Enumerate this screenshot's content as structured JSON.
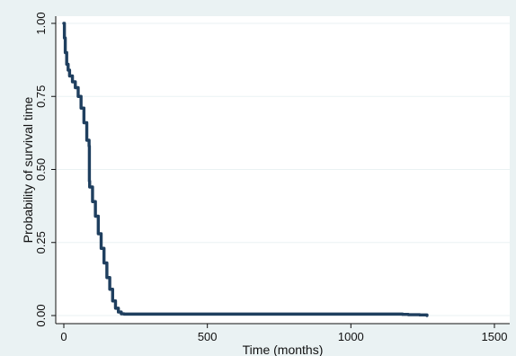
{
  "chart_data": {
    "type": "line",
    "title": "",
    "xlabel": "Time (months)",
    "ylabel": "Probability of survival time",
    "xlim": [
      0,
      1500
    ],
    "ylim": [
      0,
      1
    ],
    "x_ticks": [
      0,
      500,
      1000,
      1500
    ],
    "x_tick_labels": [
      "0",
      "500",
      "1000",
      "1500"
    ],
    "y_ticks": [
      0,
      0.25,
      0.5,
      0.75,
      1
    ],
    "y_tick_labels": [
      "0.00",
      "0.25",
      "0.50",
      "0.75",
      "1.00"
    ],
    "grid": "horizontal",
    "step": true,
    "series": [
      {
        "color": "#1f3f5f",
        "x": [
          0,
          2,
          5,
          10,
          15,
          20,
          30,
          40,
          50,
          60,
          70,
          80,
          88,
          89,
          90,
          100,
          110,
          120,
          130,
          140,
          150,
          160,
          170,
          180,
          190,
          200,
          210,
          300,
          500,
          800,
          1000,
          1150,
          1180,
          1200,
          1240,
          1265
        ],
        "y": [
          1.0,
          0.95,
          0.9,
          0.86,
          0.84,
          0.82,
          0.8,
          0.78,
          0.75,
          0.71,
          0.66,
          0.6,
          0.58,
          0.46,
          0.44,
          0.39,
          0.34,
          0.28,
          0.23,
          0.18,
          0.13,
          0.09,
          0.05,
          0.025,
          0.012,
          0.006,
          0.005,
          0.005,
          0.005,
          0.005,
          0.005,
          0.005,
          0.004,
          0.003,
          0.002,
          0.0
        ]
      }
    ]
  },
  "colors": {
    "background": "#eaf2f3",
    "plot_background": "#ffffff",
    "grid": "#eaf2f3",
    "line": "#1f3f5f",
    "axis": "#111111"
  }
}
